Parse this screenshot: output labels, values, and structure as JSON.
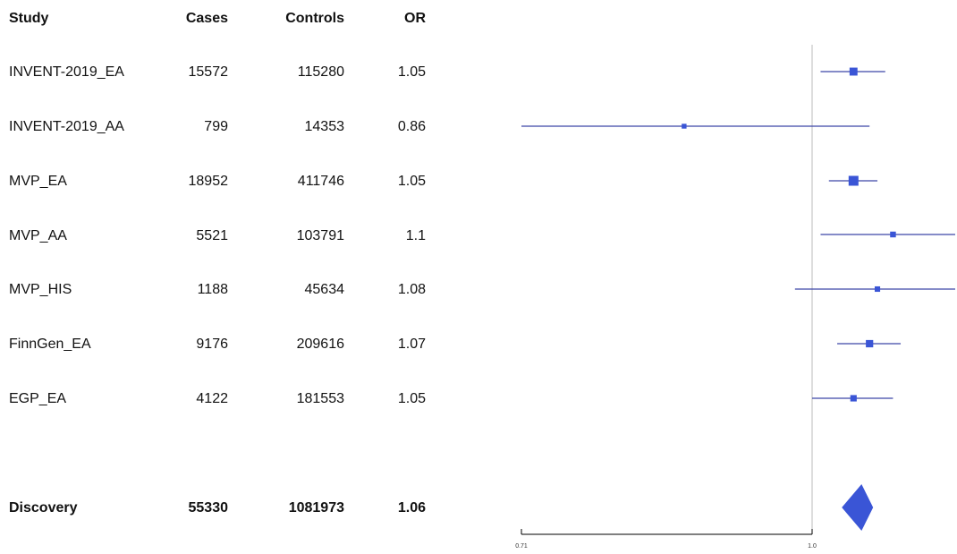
{
  "headers": {
    "study": "Study",
    "cases": "Cases",
    "controls": "Controls",
    "or": "OR"
  },
  "rows": [
    {
      "study": "INVENT-2019_EA",
      "cases": "15572",
      "controls": "115280",
      "or": "1.05"
    },
    {
      "study": "INVENT-2019_AA",
      "cases": "799",
      "controls": "14353",
      "or": "0.86"
    },
    {
      "study": "MVP_EA",
      "cases": "18952",
      "controls": "411746",
      "or": "1.05"
    },
    {
      "study": "MVP_AA",
      "cases": "5521",
      "controls": "103791",
      "or": "1.1"
    },
    {
      "study": "MVP_HIS",
      "cases": "1188",
      "controls": "45634",
      "or": "1.08"
    },
    {
      "study": "FinnGen_EA",
      "cases": "9176",
      "controls": "209616",
      "or": "1.07"
    },
    {
      "study": "EGP_EA",
      "cases": "4122",
      "controls": "181553",
      "or": "1.05"
    }
  ],
  "summary": {
    "study": "Discovery",
    "cases": "55330",
    "controls": "1081973",
    "or": "1.06"
  },
  "chart_data": {
    "type": "forest",
    "scale": "log",
    "reference_line": 1.0,
    "xlim": [
      0.71,
      1.19
    ],
    "ticks": [
      {
        "value": 0.71,
        "label": "0.71"
      },
      {
        "value": 1.0,
        "label": "1.0"
      }
    ],
    "points": [
      {
        "study": "INVENT-2019_EA",
        "or": 1.05,
        "lower": 1.01,
        "upper": 1.09,
        "weight": 0.7
      },
      {
        "study": "INVENT-2019_AA",
        "or": 0.86,
        "lower": 0.71,
        "upper": 1.07,
        "weight": 0.2
      },
      {
        "study": "MVP_EA",
        "or": 1.05,
        "lower": 1.02,
        "upper": 1.08,
        "weight": 1.0
      },
      {
        "study": "MVP_AA",
        "or": 1.1,
        "lower": 1.01,
        "upper": 1.19,
        "weight": 0.35
      },
      {
        "study": "MVP_HIS",
        "or": 1.08,
        "lower": 0.98,
        "upper": 1.19,
        "weight": 0.3
      },
      {
        "study": "FinnGen_EA",
        "or": 1.07,
        "lower": 1.03,
        "upper": 1.11,
        "weight": 0.6
      },
      {
        "study": "EGP_EA",
        "or": 1.05,
        "lower": 1.0,
        "upper": 1.1,
        "weight": 0.45
      }
    ],
    "summary": {
      "study": "Discovery",
      "or": 1.06,
      "lower": 1.04,
      "upper": 1.07
    },
    "colors": {
      "point": "#3a55d6",
      "line": "#3c46a8",
      "refline": "#bbbbbb",
      "axis": "#000000"
    }
  }
}
